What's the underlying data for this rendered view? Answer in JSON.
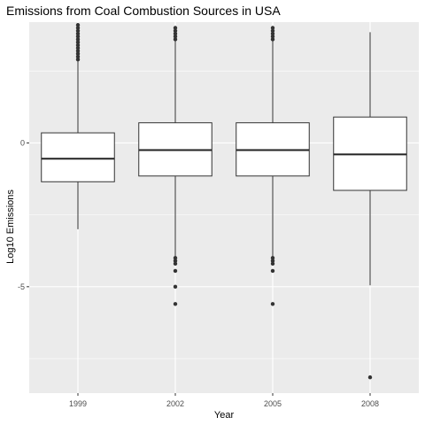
{
  "chart_data": {
    "type": "boxplot",
    "title": "Emissions from Coal Combustion Sources in USA",
    "xlabel": "Year",
    "ylabel": "Log10 Emissions",
    "categories": [
      "1999",
      "2002",
      "2005",
      "2008"
    ],
    "ylim": [
      -8.7,
      4.2
    ],
    "y_ticks": [
      -5,
      0
    ],
    "grid": true,
    "background_color": "#ebebeb",
    "grid_color": "#ffffff",
    "boxes": [
      {
        "category": "1999",
        "min": -3.0,
        "q1": -1.35,
        "median": -0.55,
        "q3": 0.35,
        "max": 2.85,
        "outliers": [
          2.9,
          3.0,
          3.1,
          3.2,
          3.3,
          3.4,
          3.5,
          3.6,
          3.7,
          3.8,
          3.9,
          4.0,
          4.1
        ]
      },
      {
        "category": "2002",
        "min": -3.95,
        "q1": -1.15,
        "median": -0.25,
        "q3": 0.7,
        "max": 3.55,
        "outliers": [
          3.6,
          3.7,
          3.8,
          3.9,
          4.0,
          -4.0,
          -4.1,
          -4.2,
          -4.45,
          -5.0,
          -5.6
        ]
      },
      {
        "category": "2005",
        "min": -3.95,
        "q1": -1.15,
        "median": -0.25,
        "q3": 0.7,
        "max": 3.55,
        "outliers": [
          3.6,
          3.7,
          3.8,
          3.9,
          4.0,
          -4.0,
          -4.1,
          -4.2,
          -4.45,
          -5.6
        ]
      },
      {
        "category": "2008",
        "min": -4.95,
        "q1": -1.65,
        "median": -0.4,
        "q3": 0.9,
        "max": 3.85,
        "outliers": [
          -8.15
        ]
      }
    ]
  }
}
